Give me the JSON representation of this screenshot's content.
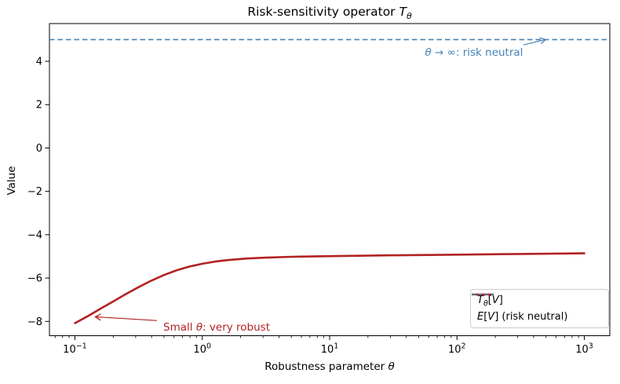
{
  "figure": {
    "background": "#ffffff"
  },
  "chart_data": {
    "type": "line",
    "title": "Risk-sensitivity operator Tθ",
    "title_parts": {
      "prefix": "Risk-sensitivity operator ",
      "t": "T",
      "sub": "θ"
    },
    "xlabel_parts": {
      "prefix": "Robustness parameter ",
      "theta": "θ"
    },
    "ylabel": "Value",
    "x_scale": "log",
    "grid": false,
    "xlim_log10": [
      -1.2,
      3.2
    ],
    "ylim": [
      -8.66,
      5.74
    ],
    "x_ticks": {
      "values": [
        0.1,
        1,
        10,
        100,
        1000
      ],
      "base": "10",
      "exponents": [
        "−1",
        "0",
        "1",
        "2",
        "3"
      ]
    },
    "y_ticks": {
      "values": [
        4,
        2,
        0,
        -2,
        -4,
        -6,
        -8
      ],
      "labels": [
        "4",
        "2",
        "0",
        "−2",
        "−4",
        "−6",
        "−8"
      ]
    },
    "series": [
      {
        "name": "Tθ[V]",
        "color": "#b22222",
        "style": "solid",
        "line_width": 2.6,
        "theta": [
          0.1,
          0.126,
          0.158,
          0.2,
          0.251,
          0.316,
          0.398,
          0.501,
          0.631,
          0.794,
          1.0,
          1.259,
          1.585,
          2.239,
          3.162,
          5.012,
          10,
          31.6,
          100,
          316,
          1000
        ],
        "values": [
          -8.08,
          -7.76,
          -7.42,
          -7.08,
          -6.74,
          -6.42,
          -6.12,
          -5.86,
          -5.64,
          -5.47,
          -5.34,
          -5.24,
          -5.17,
          -5.1,
          -5.06,
          -5.02,
          -4.99,
          -4.95,
          -4.92,
          -4.89,
          -4.86
        ]
      },
      {
        "name": "E[V] (risk neutral)",
        "color": "#4682b4",
        "style": "dashed",
        "line_width": 1.7,
        "constant": 5.0
      }
    ],
    "annotations": [
      {
        "id": "risk-neutral",
        "text": "θ → ∞: risk neutral",
        "parts": {
          "theta": "θ",
          "mid": " → ∞",
          "rest": ": risk neutral"
        },
        "color": "#4682b4",
        "anchor": "middle",
        "text_at": {
          "theta": 136,
          "value": 4.4
        },
        "arrow_from": {
          "theta": 333,
          "value": 4.76
        },
        "arrow_to": {
          "theta": 495,
          "value": 5.0
        }
      },
      {
        "id": "robust",
        "text": "Small θ: very robust",
        "parts": {
          "pre": "Small ",
          "theta": "θ",
          "rest": ": very robust"
        },
        "color": "#b22222",
        "anchor": "start",
        "text_at": {
          "theta": 0.494,
          "value": -8.28
        },
        "arrow_from": {
          "theta": 0.44,
          "value": -7.96
        },
        "arrow_to": {
          "theta": 0.145,
          "value": -7.79
        }
      }
    ],
    "legend": {
      "position": "lower right",
      "items": [
        {
          "t": "T",
          "sub": "θ",
          "open": "[",
          "v": "V",
          "close": "]"
        },
        {
          "e": "E",
          "open": "[",
          "v": "V",
          "close": "]",
          "rest": " (risk neutral)"
        }
      ]
    }
  }
}
